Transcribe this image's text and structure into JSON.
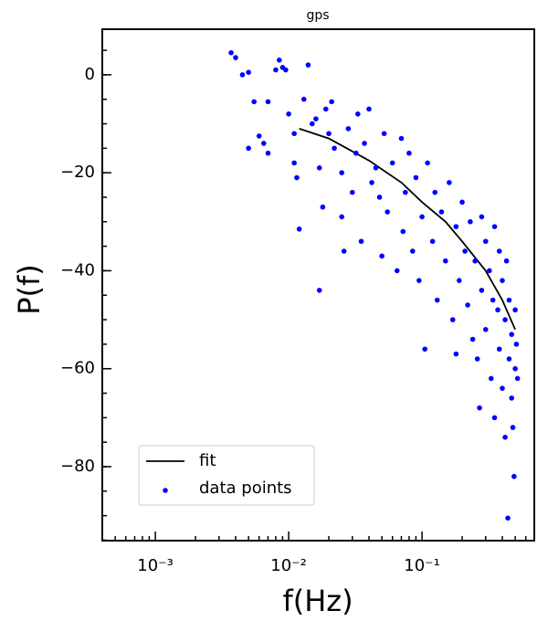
{
  "chart_data": {
    "type": "scatter",
    "title": "gps",
    "xlabel": "f(Hz)",
    "ylabel": "P(f)",
    "xscale": "log",
    "xlim": [
      0.0004,
      0.695
    ],
    "ylim": [
      -95.1,
      9.3
    ],
    "xticks": [
      {
        "value": 0.001,
        "label": "10⁻³"
      },
      {
        "value": 0.01,
        "label": "10⁻²"
      },
      {
        "value": 0.1,
        "label": "10⁻¹"
      }
    ],
    "yticks": [
      {
        "value": 0,
        "label": "0"
      },
      {
        "value": -20,
        "label": "−20"
      },
      {
        "value": -40,
        "label": "−40"
      },
      {
        "value": -60,
        "label": "−60"
      },
      {
        "value": -80,
        "label": "−80"
      }
    ],
    "legend": "lower left",
    "series": [
      {
        "name": "fit",
        "type": "line",
        "color": "#000000",
        "x": [
          0.012,
          0.02,
          0.04,
          0.07,
          0.1,
          0.15,
          0.2,
          0.3,
          0.4,
          0.5
        ],
        "values": [
          -11,
          -13,
          -17.5,
          -22,
          -26,
          -30,
          -34,
          -40,
          -46,
          -52
        ]
      },
      {
        "name": "data points",
        "type": "scatter",
        "color": "#0000ff",
        "x": [
          0.0037,
          0.004,
          0.0045,
          0.005,
          0.0055,
          0.005,
          0.006,
          0.0065,
          0.007,
          0.007,
          0.008,
          0.0085,
          0.009,
          0.0095,
          0.01,
          0.011,
          0.011,
          0.0115,
          0.012,
          0.013,
          0.014,
          0.015,
          0.016,
          0.017,
          0.017,
          0.018,
          0.019,
          0.02,
          0.021,
          0.022,
          0.025,
          0.026,
          0.025,
          0.028,
          0.03,
          0.032,
          0.033,
          0.035,
          0.037,
          0.04,
          0.042,
          0.045,
          0.048,
          0.05,
          0.052,
          0.055,
          0.06,
          0.065,
          0.07,
          0.072,
          0.075,
          0.08,
          0.085,
          0.09,
          0.095,
          0.1,
          0.105,
          0.11,
          0.12,
          0.125,
          0.13,
          0.14,
          0.15,
          0.16,
          0.17,
          0.18,
          0.18,
          0.19,
          0.2,
          0.21,
          0.22,
          0.23,
          0.24,
          0.25,
          0.26,
          0.27,
          0.28,
          0.28,
          0.3,
          0.3,
          0.32,
          0.33,
          0.34,
          0.35,
          0.35,
          0.37,
          0.38,
          0.38,
          0.4,
          0.4,
          0.42,
          0.42,
          0.43,
          0.44,
          0.45,
          0.45,
          0.47,
          0.47,
          0.48,
          0.49,
          0.5,
          0.5,
          0.51,
          0.52
        ],
        "values": [
          4.5,
          3.5,
          0,
          0.5,
          -5.5,
          -15,
          -12.5,
          -14,
          -16,
          -5.5,
          1,
          3,
          1.5,
          1,
          -8,
          -12,
          -18,
          -21,
          -31.5,
          -5,
          2,
          -10,
          -9,
          -19,
          -44,
          -27,
          -7,
          -12,
          -5.5,
          -15,
          -29,
          -36,
          -20,
          -11,
          -24,
          -16,
          -8,
          -34,
          -14,
          -7,
          -22,
          -19,
          -25,
          -37,
          -12,
          -28,
          -18,
          -40,
          -13,
          -32,
          -24,
          -16,
          -36,
          -21,
          -42,
          -29,
          -56,
          -18,
          -34,
          -24,
          -46,
          -28,
          -38,
          -22,
          -50,
          -31,
          -57,
          -42,
          -26,
          -36,
          -47,
          -30,
          -54,
          -38,
          -58,
          -68,
          -44,
          -29,
          -34,
          -52,
          -40,
          -62,
          -46,
          -70,
          -31,
          -48,
          -36,
          -56,
          -64,
          -42,
          -74,
          -50,
          -38,
          -90.5,
          -46,
          -58,
          -53,
          -66,
          -72,
          -82,
          -48,
          -60,
          -55,
          -62
        ]
      }
    ]
  }
}
